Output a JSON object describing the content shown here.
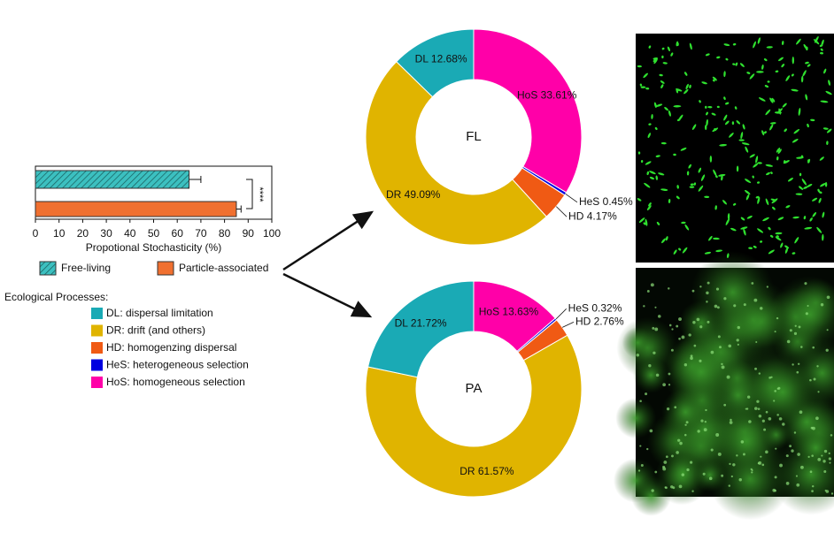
{
  "chart_data": [
    {
      "type": "hbar",
      "categories": [
        "Free-living",
        "Particle-associated"
      ],
      "values": [
        65,
        85
      ],
      "errors": [
        5,
        2
      ],
      "colors": [
        "#3cc0c0",
        "#f07030"
      ],
      "patterns": [
        "hatch",
        "solid"
      ],
      "xlabel": "Propotional Stochasticity (%)",
      "xlim": [
        0,
        100
      ],
      "xticks": [
        0,
        10,
        20,
        30,
        40,
        50,
        60,
        70,
        80,
        90,
        100
      ],
      "annotation": "****"
    },
    {
      "type": "donut",
      "center_label": "FL",
      "categories": [
        "HoS",
        "HeS",
        "HD",
        "DR",
        "DL"
      ],
      "values": [
        33.61,
        0.45,
        4.17,
        49.09,
        12.68
      ],
      "value_labels": [
        "HoS 33.61%",
        "HeS 0.45%",
        "HD 4.17%",
        "DR 49.09%",
        "DL 12.68%"
      ],
      "colors": [
        "#ff00a8",
        "#0000e0",
        "#f05a14",
        "#e0b400",
        "#1aaab5"
      ]
    },
    {
      "type": "donut",
      "center_label": "PA",
      "categories": [
        "HoS",
        "HeS",
        "HD",
        "DR",
        "DL"
      ],
      "values": [
        13.63,
        0.32,
        2.76,
        61.57,
        21.72
      ],
      "value_labels": [
        "HoS 13.63%",
        "HeS 0.32%",
        "HD 2.76%",
        "DR 61.57%",
        "DL 21.72%"
      ],
      "colors": [
        "#ff00a8",
        "#0000e0",
        "#f05a14",
        "#e0b400",
        "#1aaab5"
      ]
    }
  ],
  "legend": {
    "title": "Ecological Processes:",
    "items": [
      {
        "label": "DL: dispersal limitation",
        "color": "#1aaab5"
      },
      {
        "label": "DR: drift (and others)",
        "color": "#e0b400"
      },
      {
        "label": "HD: homogenzing dispersal",
        "color": "#f05a14"
      },
      {
        "label": "HeS: heterogeneous selection",
        "color": "#0000e0"
      },
      {
        "label": "HoS: homogeneous selection",
        "color": "#ff00a8"
      }
    ]
  }
}
